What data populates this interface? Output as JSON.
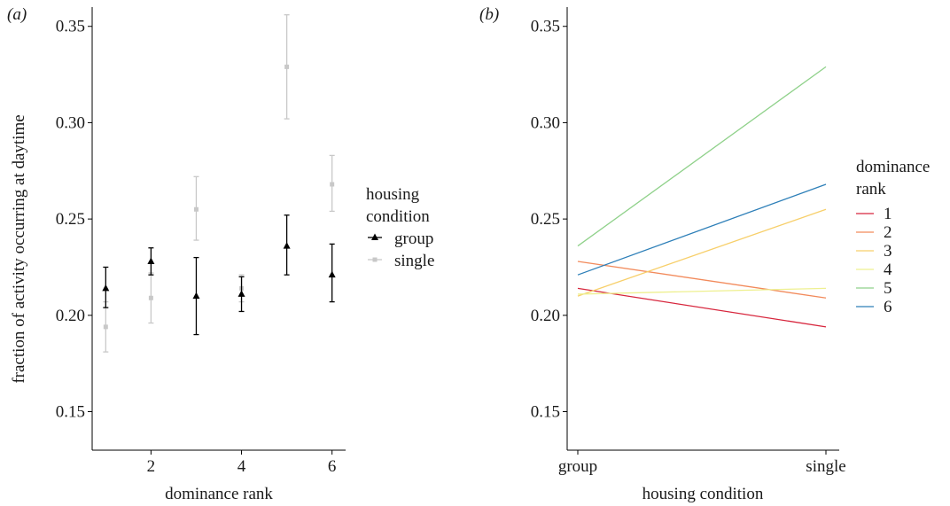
{
  "chart_data": [
    {
      "panel_label": "(a)",
      "type": "scatter",
      "xlabel": "dominance rank",
      "ylabel": "fraction of activity occurring at daytime",
      "xlim": [
        0.7,
        6.3
      ],
      "ylim": [
        0.13,
        0.36
      ],
      "xticks": [
        "2",
        "4",
        "6"
      ],
      "yticks": [
        "0.15",
        "0.20",
        "0.25",
        "0.30",
        "0.35"
      ],
      "grid": false,
      "legend": {
        "title": [
          "housing",
          "condition"
        ],
        "placement": "right"
      },
      "series": [
        {
          "name": "group",
          "color": "#000000",
          "marker": "triangle",
          "points": [
            {
              "x": 1,
              "y": 0.214,
              "lo": 0.204,
              "hi": 0.225
            },
            {
              "x": 2,
              "y": 0.228,
              "lo": 0.221,
              "hi": 0.235
            },
            {
              "x": 3,
              "y": 0.21,
              "lo": 0.19,
              "hi": 0.23
            },
            {
              "x": 4,
              "y": 0.211,
              "lo": 0.202,
              "hi": 0.22
            },
            {
              "x": 5,
              "y": 0.236,
              "lo": 0.221,
              "hi": 0.252
            },
            {
              "x": 6,
              "y": 0.221,
              "lo": 0.207,
              "hi": 0.237
            }
          ]
        },
        {
          "name": "single",
          "color": "#c8c8c8",
          "marker": "square",
          "points": [
            {
              "x": 1,
              "y": 0.194,
              "lo": 0.181,
              "hi": 0.207
            },
            {
              "x": 2,
              "y": 0.209,
              "lo": 0.196,
              "hi": 0.222
            },
            {
              "x": 3,
              "y": 0.255,
              "lo": 0.239,
              "hi": 0.272
            },
            {
              "x": 4,
              "y": 0.214,
              "lo": 0.207,
              "hi": 0.221
            },
            {
              "x": 5,
              "y": 0.329,
              "lo": 0.302,
              "hi": 0.356
            },
            {
              "x": 6,
              "y": 0.268,
              "lo": 0.254,
              "hi": 0.283
            }
          ]
        }
      ]
    },
    {
      "panel_label": "(b)",
      "type": "line",
      "xlabel": "housing condition",
      "ylabel": "",
      "categories": [
        "group",
        "single"
      ],
      "ylim": [
        0.13,
        0.36
      ],
      "yticks": [
        "0.15",
        "0.20",
        "0.25",
        "0.30",
        "0.35"
      ],
      "grid": false,
      "legend": {
        "title": [
          "dominance",
          "rank"
        ],
        "placement": "right"
      },
      "series": [
        {
          "name": "1",
          "color": "#d7263d",
          "values": [
            0.214,
            0.194
          ]
        },
        {
          "name": "2",
          "color": "#f28a5b",
          "values": [
            0.228,
            0.209
          ]
        },
        {
          "name": "3",
          "color": "#f7cf6a",
          "values": [
            0.21,
            0.255
          ]
        },
        {
          "name": "4",
          "color": "#eef090",
          "values": [
            0.211,
            0.214
          ]
        },
        {
          "name": "5",
          "color": "#8fd18a",
          "values": [
            0.236,
            0.329
          ]
        },
        {
          "name": "6",
          "color": "#2d7fb8",
          "values": [
            0.221,
            0.268
          ]
        }
      ]
    }
  ]
}
